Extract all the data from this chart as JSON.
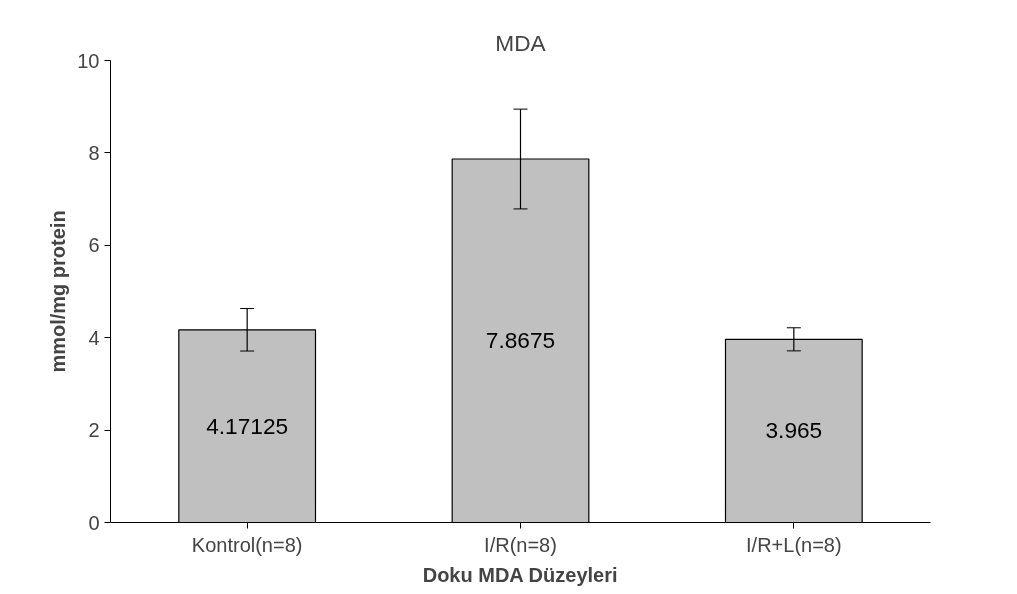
{
  "chart_data": {
    "type": "bar",
    "title": "MDA",
    "xlabel": "Doku MDA Düzeyleri",
    "ylabel": "mmol/mg protein",
    "categories": [
      "Kontrol(n=8)",
      "I/R(n=8)",
      "I/R+L(n=8)"
    ],
    "values": [
      4.17125,
      7.8675,
      3.965
    ],
    "errors": [
      0.46,
      1.08,
      0.25
    ],
    "color": "#c0c0c0",
    "data_labels": true,
    "ylim": [
      0,
      10
    ],
    "yticks": [
      0,
      2,
      4,
      6,
      8,
      10
    ],
    "grid": false
  }
}
